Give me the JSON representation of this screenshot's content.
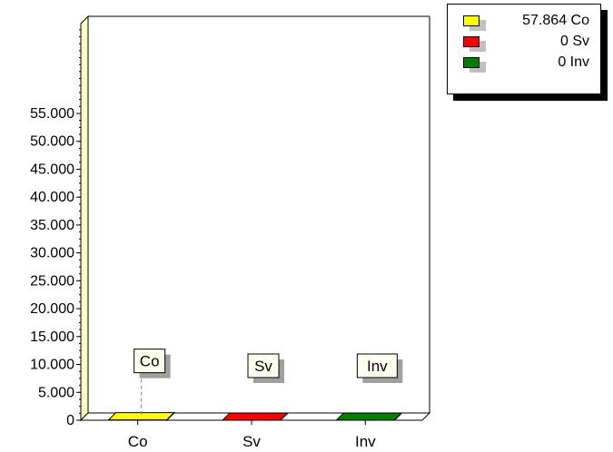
{
  "chart_data": {
    "type": "bar",
    "categories": [
      "Co",
      "Sv",
      "Inv"
    ],
    "values": [
      57.864,
      0,
      0
    ],
    "colors": [
      "#ffff00",
      "#ff0000",
      "#008000"
    ],
    "title": "",
    "xlabel": "",
    "ylabel": "",
    "ylim": [
      0,
      55000
    ],
    "y_ticks": [
      "0",
      "5.000",
      "10.000",
      "15.000",
      "20.000",
      "25.000",
      "30.000",
      "35.000",
      "40.000",
      "45.000",
      "50.000",
      "55.000"
    ],
    "data_labels": [
      "Co",
      "Sv",
      "Inv"
    ],
    "grid": true,
    "legend_position": "top-right",
    "legend": [
      {
        "label": "57.864 Co",
        "color": "#ffff00"
      },
      {
        "label": "0 Sv",
        "color": "#ff0000"
      },
      {
        "label": "0 Inv",
        "color": "#008000"
      }
    ]
  }
}
